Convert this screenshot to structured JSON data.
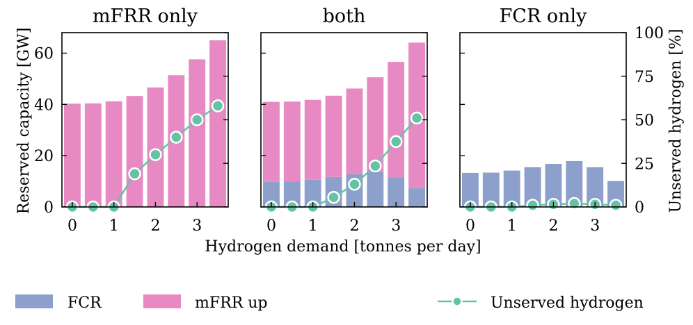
{
  "chart_data": {
    "type": "bar",
    "xlabel": "Hydrogen demand [tonnes per day]",
    "ylabel_left": "Reserved capacity [GW]",
    "ylabel_right": "Unserved hydrogen [%]",
    "ylim_left": [
      0,
      68
    ],
    "ylim_right": [
      0,
      100
    ],
    "xlim": [
      -0.25,
      3.75
    ],
    "x": [
      0,
      0.5,
      1,
      1.5,
      2,
      2.5,
      3,
      3.5
    ],
    "xticks": [
      0,
      1,
      2,
      3
    ],
    "yticks_left": [
      0,
      20,
      40,
      60
    ],
    "yticks_right": [
      0,
      25,
      50,
      75,
      100
    ],
    "legend": {
      "placement": "bottom",
      "entries": [
        "FCR",
        "mFRR up",
        "Unserved hydrogen"
      ]
    },
    "colors": {
      "FCR": "#8da0cb",
      "mFRR up": "#e78ac3",
      "Unserved hydrogen": "#66c2a5"
    },
    "panels": [
      {
        "title": "mFRR only",
        "fcr": [
          0,
          0,
          0,
          0,
          0,
          0,
          0,
          0
        ],
        "mfrr_up": [
          40.3,
          40.4,
          41.2,
          43.3,
          46.6,
          51.4,
          57.6,
          65.0
        ],
        "unserved_hydrogen": [
          0,
          0,
          0,
          19,
          30,
          40,
          50,
          58
        ]
      },
      {
        "title": "both",
        "fcr": [
          9.8,
          9.9,
          10.6,
          11.7,
          12.8,
          13.6,
          11.6,
          7.3
        ],
        "mfrr_up": [
          31.2,
          31.2,
          31.2,
          31.7,
          33.4,
          37.0,
          45.0,
          56.8
        ],
        "unserved_hydrogen": [
          0,
          0,
          0,
          5.5,
          13,
          23.5,
          37.5,
          51
        ]
      },
      {
        "title": "FCR only",
        "fcr": [
          13.3,
          13.4,
          14.2,
          15.5,
          16.8,
          17.9,
          15.5,
          10.1
        ],
        "mfrr_up": [
          0,
          0,
          0,
          0,
          0,
          0,
          0,
          0
        ],
        "unserved_hydrogen": [
          0,
          0,
          0,
          1,
          1.5,
          2,
          1.5,
          1
        ]
      }
    ]
  }
}
